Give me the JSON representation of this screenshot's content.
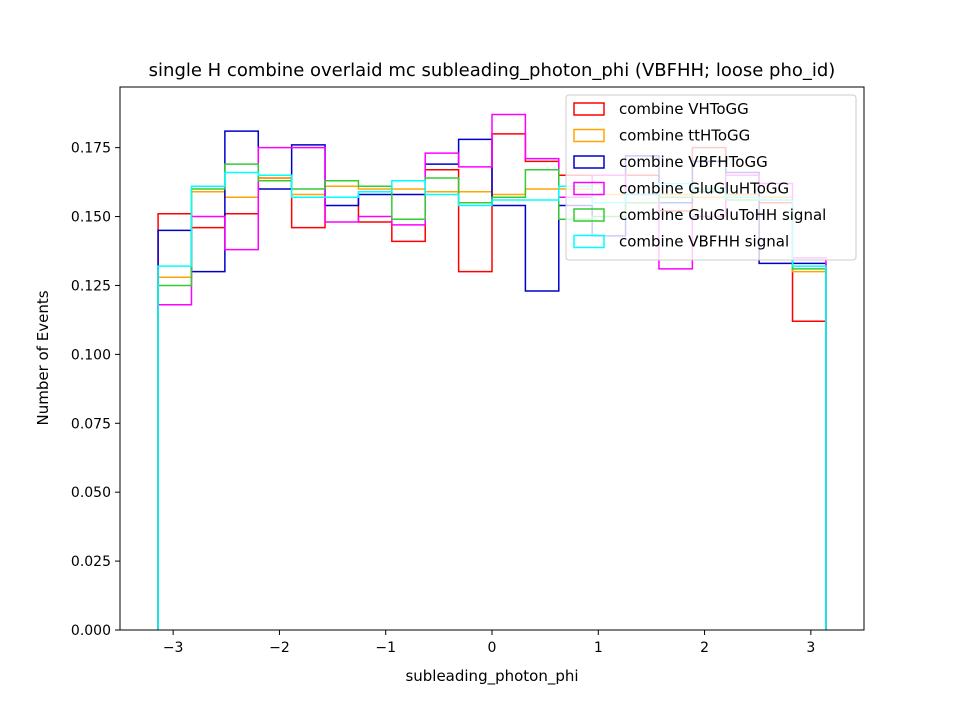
{
  "chart_data": {
    "type": "histogram-step",
    "title": "single H combine overlaid mc subleading_photon_phi (VBFHH; loose pho_id)",
    "xlabel": "subleading_photon_phi",
    "ylabel": "Number of Events",
    "xlim": [
      -3.5,
      3.5
    ],
    "ylim": [
      0,
      0.197
    ],
    "xticks": [
      -3,
      -2,
      -1,
      0,
      1,
      2,
      3
    ],
    "xtick_labels": [
      "−3",
      "−2",
      "−1",
      "0",
      "1",
      "2",
      "3"
    ],
    "yticks": [
      0.0,
      0.025,
      0.05,
      0.075,
      0.1,
      0.125,
      0.15,
      0.175
    ],
    "ytick_labels": [
      "0.000",
      "0.025",
      "0.050",
      "0.075",
      "0.100",
      "0.125",
      "0.150",
      "0.175"
    ],
    "legend_position": "top-right",
    "bin_edges": [
      -3.1416,
      -2.8274,
      -2.5133,
      -2.1991,
      -1.885,
      -1.5708,
      -1.2566,
      -0.9425,
      -0.6283,
      -0.3142,
      0.0,
      0.3142,
      0.6283,
      0.9425,
      1.2566,
      1.5708,
      1.885,
      2.1991,
      2.5133,
      2.8274,
      3.1416
    ],
    "series": [
      {
        "name": "combine VHToGG",
        "color": "#ff0000",
        "values": [
          0.151,
          0.146,
          0.151,
          0.164,
          0.146,
          0.157,
          0.148,
          0.141,
          0.167,
          0.13,
          0.18,
          0.17,
          0.165,
          0.165,
          0.165,
          0.152,
          0.175,
          0.158,
          0.155,
          0.112
        ]
      },
      {
        "name": "combine ttHToGG",
        "color": "#ffa500",
        "values": [
          0.128,
          0.159,
          0.157,
          0.164,
          0.158,
          0.161,
          0.16,
          0.16,
          0.159,
          0.159,
          0.158,
          0.16,
          0.16,
          0.158,
          0.158,
          0.158,
          0.157,
          0.158,
          0.157,
          0.13
        ]
      },
      {
        "name": "combine VBFHToGG",
        "color": "#0000cc",
        "values": [
          0.145,
          0.13,
          0.181,
          0.16,
          0.176,
          0.154,
          0.158,
          0.158,
          0.169,
          0.178,
          0.154,
          0.123,
          0.154,
          0.143,
          0.172,
          0.155,
          0.17,
          0.166,
          0.133,
          0.133
        ]
      },
      {
        "name": "combine GluGluHToGG",
        "color": "#ff00ff",
        "values": [
          0.118,
          0.15,
          0.138,
          0.175,
          0.175,
          0.148,
          0.15,
          0.147,
          0.173,
          0.168,
          0.187,
          0.171,
          0.157,
          0.165,
          0.158,
          0.131,
          0.15,
          0.165,
          0.162,
          0.135
        ]
      },
      {
        "name": "combine GluGluToHH signal",
        "color": "#33cc33",
        "values": [
          0.125,
          0.16,
          0.169,
          0.163,
          0.16,
          0.163,
          0.161,
          0.149,
          0.164,
          0.155,
          0.157,
          0.167,
          0.149,
          0.15,
          0.155,
          0.157,
          0.159,
          0.156,
          0.156,
          0.131
        ]
      },
      {
        "name": "combine VBFHH signal",
        "color": "#00ffff",
        "values": [
          0.132,
          0.161,
          0.166,
          0.165,
          0.157,
          0.157,
          0.159,
          0.163,
          0.158,
          0.154,
          0.156,
          0.156,
          0.161,
          0.155,
          0.158,
          0.162,
          0.16,
          0.157,
          0.156,
          0.132
        ]
      }
    ]
  }
}
